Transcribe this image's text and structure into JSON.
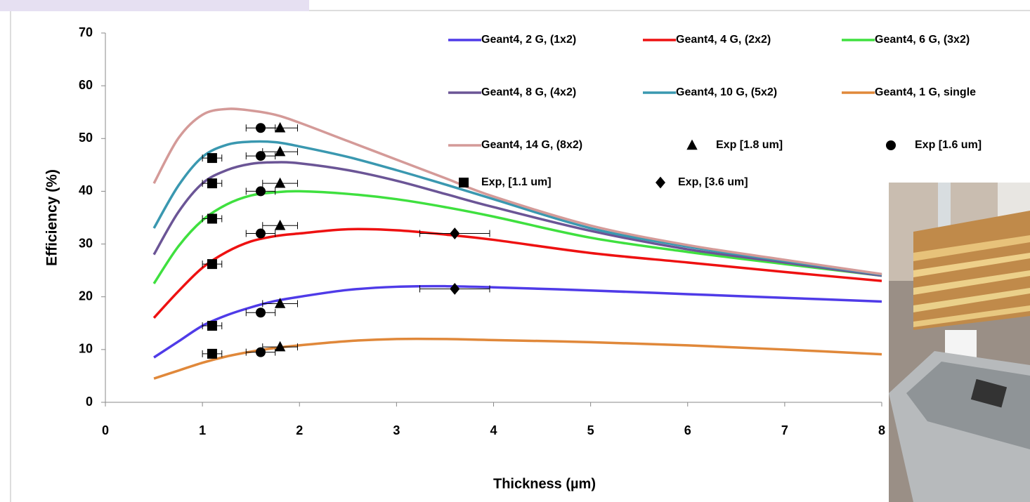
{
  "chart_data": {
    "type": "line",
    "xlabel": "Thickness (µm)",
    "ylabel": "Efficiency (%)",
    "xlim": [
      0,
      8
    ],
    "xticks": [
      0,
      1,
      2,
      3,
      4,
      5,
      6,
      7,
      8
    ],
    "ylim": [
      0,
      70
    ],
    "yticks": [
      0,
      10,
      20,
      30,
      40,
      50,
      60,
      70
    ],
    "x": [
      0.5,
      0.75,
      1,
      1.25,
      1.5,
      1.75,
      2,
      2.5,
      3,
      3.5,
      4,
      5,
      6,
      7,
      8
    ],
    "series": [
      {
        "name": "Geant4, 2 G, (1x2)",
        "type": "line",
        "color": "#4f3be8",
        "values": [
          8.5,
          11.5,
          14.5,
          16.5,
          18,
          19.2,
          20,
          21.3,
          21.9,
          22,
          21.8,
          21.2,
          20.5,
          19.8,
          19.1
        ]
      },
      {
        "name": "Geant4, 4 G, (2x2)",
        "type": "line",
        "color": "#ee1111",
        "values": [
          16,
          21,
          25.5,
          28.5,
          30.5,
          31.5,
          32,
          32.8,
          32.6,
          31.8,
          30.8,
          28.3,
          26.5,
          24.7,
          23
        ]
      },
      {
        "name": "Geant4, 6 G, (3x2)",
        "type": "line",
        "color": "#3fe03f",
        "values": [
          22.5,
          29.5,
          34.5,
          37.5,
          39.2,
          39.8,
          40,
          39.5,
          38.5,
          37,
          35.2,
          31.2,
          28.5,
          26.2,
          24
        ]
      },
      {
        "name": "Geant4, 8 G, (4x2)",
        "type": "line",
        "color": "#6b5596",
        "values": [
          28,
          36,
          41.5,
          44,
          45.2,
          45.5,
          45.3,
          44,
          42,
          39.5,
          37,
          32.5,
          29,
          26.5,
          24
        ]
      },
      {
        "name": "Geant4, 10 G, (5x2)",
        "type": "line",
        "color": "#3a98b0",
        "values": [
          33,
          41,
          46.5,
          48.8,
          49.4,
          49.3,
          48.5,
          46.5,
          44,
          41.3,
          38.5,
          33,
          29.5,
          26.8,
          24.2
        ]
      },
      {
        "name": "Geant4, 1 G, single",
        "type": "line",
        "color": "#e0883a",
        "values": [
          4.5,
          6,
          7.5,
          8.7,
          9.6,
          10.3,
          10.8,
          11.6,
          12,
          12,
          11.8,
          11.4,
          10.8,
          10,
          9.1
        ]
      },
      {
        "name": "Geant4, 14 G, (8x2)",
        "type": "line",
        "color": "#d49a98",
        "values": [
          41.5,
          50,
          54.5,
          55.6,
          55.3,
          54.5,
          53,
          49.5,
          46,
          42.5,
          39,
          33.5,
          29.8,
          27,
          24.3
        ]
      },
      {
        "name": "Exp [1.8 um]",
        "type": "scatter",
        "marker": "triangle",
        "color": "#000000",
        "x": [
          1.8,
          1.8,
          1.8,
          1.8,
          1.8,
          1.8
        ],
        "xerr": [
          0.18,
          0.18,
          0.18,
          0.18,
          0.18,
          0.18
        ],
        "values": [
          52,
          47.5,
          41.5,
          33.5,
          18.7,
          10.5
        ]
      },
      {
        "name": "Exp [1.6 um]",
        "type": "scatter",
        "marker": "circle",
        "color": "#000000",
        "x": [
          1.6,
          1.6,
          1.6,
          1.6,
          1.6,
          1.6
        ],
        "xerr": [
          0.15,
          0.15,
          0.15,
          0.15,
          0.15,
          0.15
        ],
        "values": [
          52,
          46.7,
          40,
          32,
          17,
          9.5
        ]
      },
      {
        "name": "Exp, [1.1 um]",
        "type": "scatter",
        "marker": "square",
        "color": "#000000",
        "x": [
          1.1,
          1.1,
          1.1,
          1.1,
          1.1,
          1.1
        ],
        "xerr": [
          0.1,
          0.1,
          0.1,
          0.1,
          0.1,
          0.1
        ],
        "values": [
          46.3,
          41.5,
          34.8,
          26.2,
          14.5,
          9.2
        ]
      },
      {
        "name": "Exp, [3.6 um]",
        "type": "scatter",
        "marker": "diamond",
        "color": "#000000",
        "x": [
          3.6,
          3.6
        ],
        "xerr": [
          0.36,
          0.36
        ],
        "values": [
          32,
          21.5
        ]
      }
    ]
  }
}
